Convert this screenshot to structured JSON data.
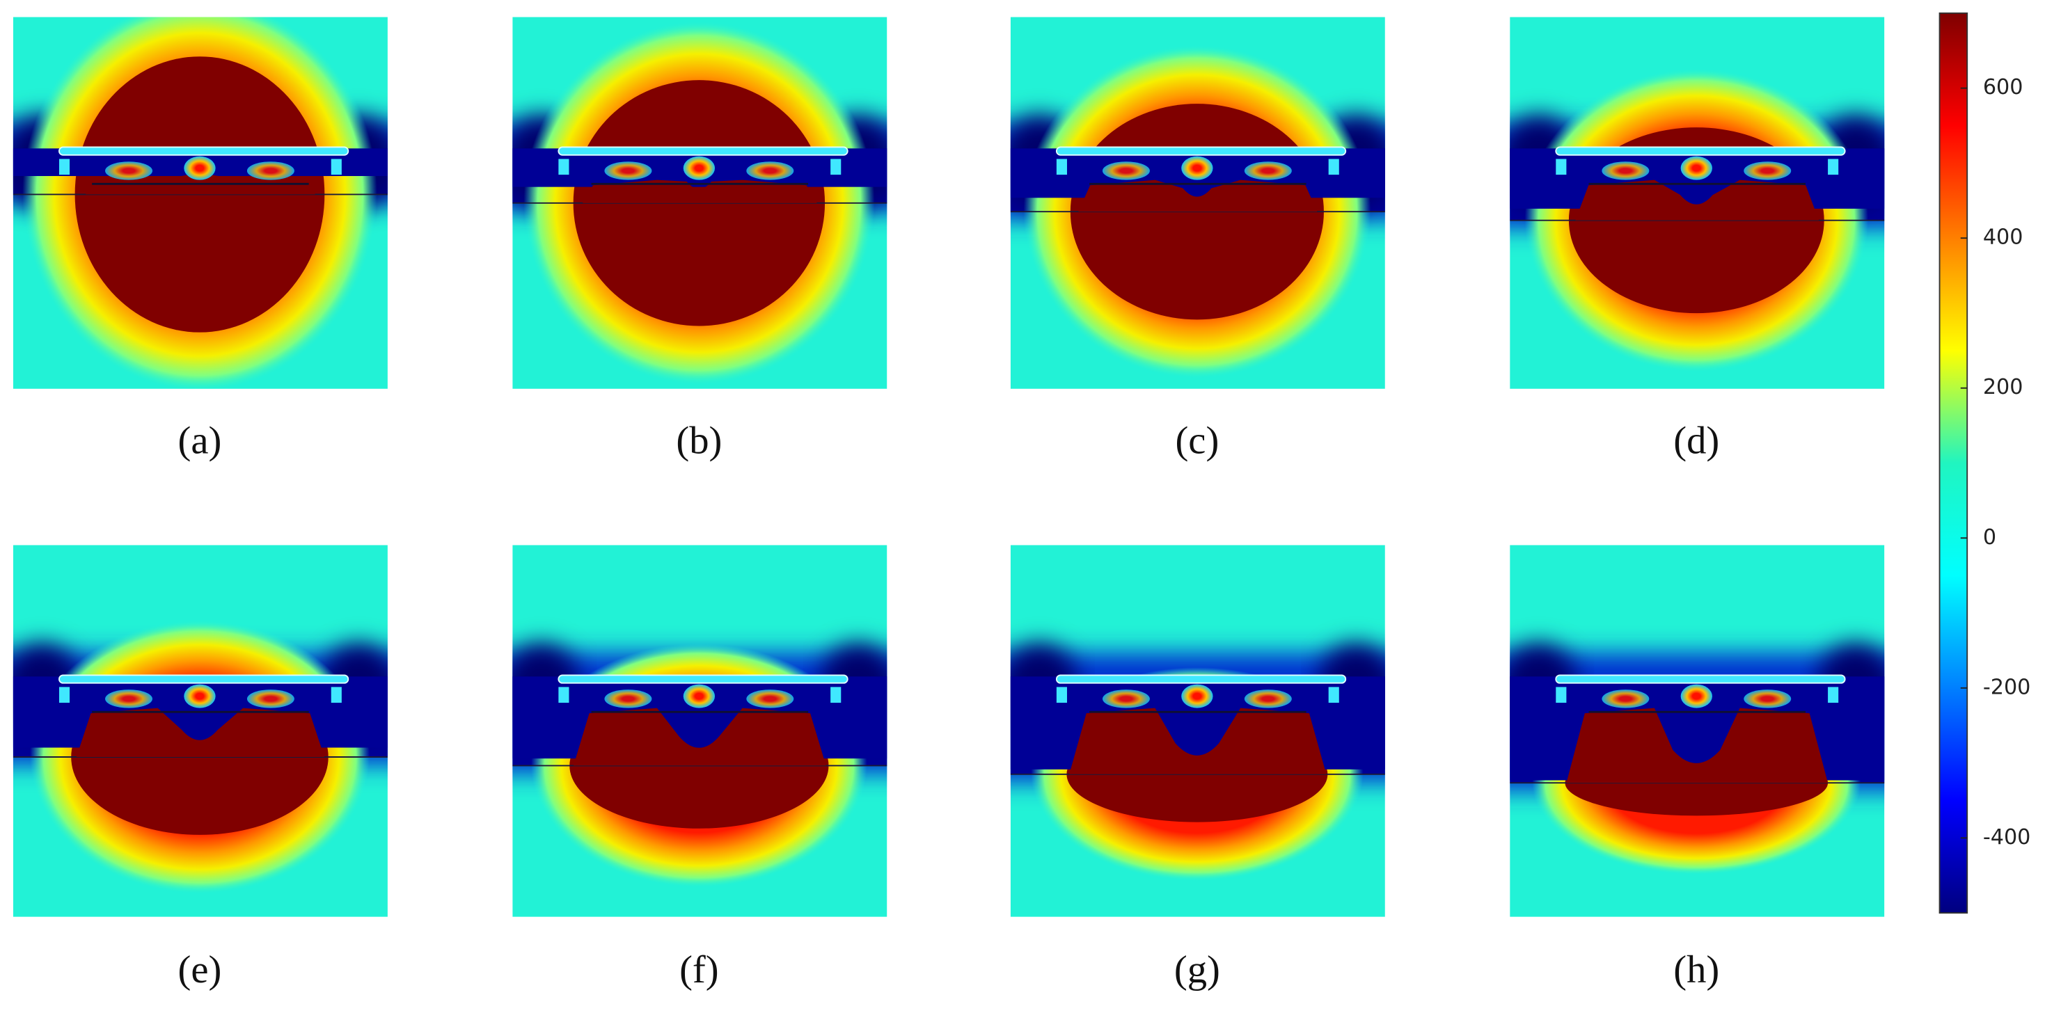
{
  "panel_labels": [
    "(a)",
    "(b)",
    "(c)",
    "(d)",
    "(e)",
    "(f)",
    "(g)",
    "(h)"
  ],
  "colorbar": {
    "range": [
      -500,
      700
    ],
    "ticks": [
      600,
      400,
      200,
      0,
      -200,
      -400
    ]
  }
}
